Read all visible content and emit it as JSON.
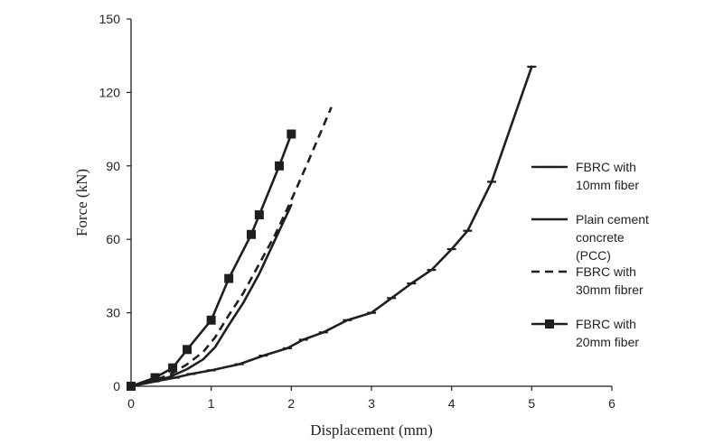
{
  "chart_data": {
    "type": "line",
    "title": "",
    "xlabel": "Displacement (mm)",
    "ylabel": "Force (kN)",
    "xlim": [
      0,
      6
    ],
    "ylim": [
      0,
      150
    ],
    "xticks": [
      "0",
      "1",
      "2",
      "3",
      "4",
      "5",
      "6"
    ],
    "yticks": [
      "0",
      "30",
      "60",
      "90",
      "120",
      "150"
    ],
    "grid": false,
    "legend_position": "right",
    "series": [
      {
        "name": "FBRC with 10mm fiber",
        "legend_lines": [
          "FBRC with",
          "10mm fiber"
        ],
        "style": "solid",
        "marker": "dash",
        "x": [
          0,
          0.3,
          0.55,
          0.75,
          1.0,
          1.35,
          1.65,
          1.95,
          2.15,
          2.4,
          2.7,
          3.0,
          3.25,
          3.5,
          3.75,
          4.0,
          4.2,
          4.5,
          5.0
        ],
        "y": [
          0,
          2,
          3.5,
          5,
          6.5,
          9,
          12.5,
          15.5,
          19,
          22,
          27,
          30,
          36,
          42,
          47.5,
          56,
          63.5,
          83.5,
          130.5
        ]
      },
      {
        "name": "Plain cement concrete (PCC)",
        "legend_lines": [
          "Plain cement",
          "concrete",
          "(PCC)"
        ],
        "style": "solid",
        "marker": "none",
        "x": [
          0,
          0.3,
          0.5,
          0.7,
          0.9,
          1.05,
          1.2,
          1.4,
          1.6,
          1.8,
          2.0
        ],
        "y": [
          0,
          2,
          4,
          7,
          11,
          16,
          24,
          34,
          46,
          60,
          74
        ]
      },
      {
        "name": "FBRC with 30mm fibrer",
        "legend_lines": [
          "FBRC with",
          "30mm fibrer"
        ],
        "style": "dashed",
        "marker": "none",
        "x": [
          0,
          0.3,
          0.5,
          0.7,
          0.9,
          1.05,
          1.2,
          1.4,
          1.6,
          1.8,
          2.0,
          2.2,
          2.5
        ],
        "y": [
          0,
          2.5,
          5,
          9,
          14,
          20,
          28,
          38,
          50,
          62,
          76,
          91,
          114
        ]
      },
      {
        "name": "FBRC with 20mm fiber",
        "legend_lines": [
          "FBRC with",
          "20mm fiber"
        ],
        "style": "solid",
        "marker": "square",
        "x": [
          0,
          0.3,
          0.52,
          0.7,
          1.0,
          1.22,
          1.5,
          1.6,
          1.85,
          2.0
        ],
        "y": [
          0,
          3.5,
          7.5,
          15,
          27,
          44,
          62,
          70,
          90,
          103
        ]
      }
    ]
  }
}
